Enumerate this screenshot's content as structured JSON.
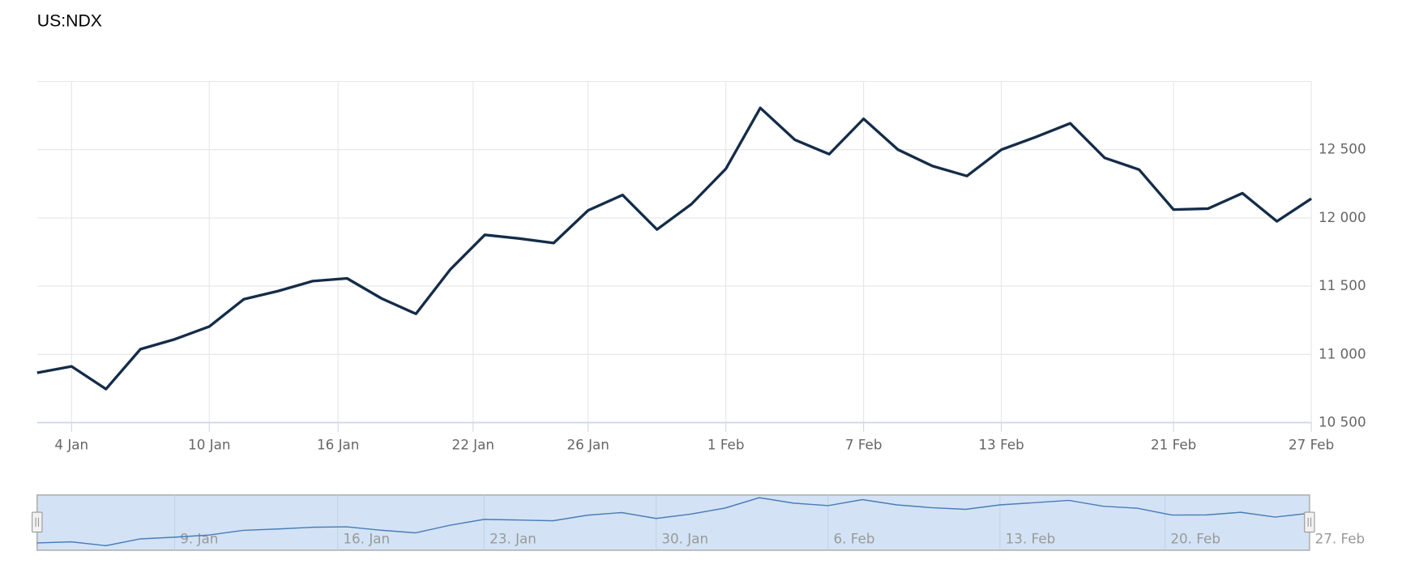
{
  "chart_data": {
    "type": "line",
    "title": "US:NDX",
    "color": "#142c48",
    "values": [
      10865,
      10912,
      10746,
      11038,
      11111,
      11204,
      11404,
      11464,
      11537,
      11557,
      11410,
      11297,
      11623,
      11876,
      11849,
      11816,
      12055,
      12168,
      11915,
      12101,
      12360,
      12806,
      12573,
      12467,
      12726,
      12500,
      12380,
      12307,
      12500,
      12593,
      12693,
      12440,
      12354,
      12061,
      12068,
      12181,
      11975,
      12141
    ],
    "xlim": [
      0,
      37
    ],
    "xticks": [
      {
        "value": 1,
        "label": "4 Jan"
      },
      {
        "value": 5,
        "label": "10 Jan"
      },
      {
        "value": 8.74,
        "label": "16 Jan"
      },
      {
        "value": 12.66,
        "label": "22 Jan"
      },
      {
        "value": 16,
        "label": "26 Jan"
      },
      {
        "value": 20,
        "label": "1 Feb"
      },
      {
        "value": 24,
        "label": "7 Feb"
      },
      {
        "value": 28,
        "label": "13 Feb"
      },
      {
        "value": 33,
        "label": "21 Feb"
      },
      {
        "value": 37,
        "label": "27 Feb"
      }
    ],
    "ylim": [
      10500,
      13000
    ],
    "yticks": [
      {
        "value": 10500,
        "label": "10 500"
      },
      {
        "value": 11000,
        "label": "11 000"
      },
      {
        "value": 11500,
        "label": "11 500"
      },
      {
        "value": 12000,
        "label": "12 000"
      },
      {
        "value": 12500,
        "label": "12 500"
      }
    ],
    "grid": true,
    "navigator": {
      "color": "#4a7cb8",
      "fill": "#d3e3f5",
      "xticks": [
        {
          "value": 4,
          "label": "9. Jan"
        },
        {
          "value": 8.74,
          "label": "16. Jan"
        },
        {
          "value": 13,
          "label": "23. Jan"
        },
        {
          "value": 18,
          "label": "30. Jan"
        },
        {
          "value": 23,
          "label": "6. Feb"
        },
        {
          "value": 28,
          "label": "13. Feb"
        },
        {
          "value": 32.8,
          "label": "20. Feb"
        },
        {
          "value": 37,
          "label": "27. Feb"
        }
      ]
    }
  }
}
